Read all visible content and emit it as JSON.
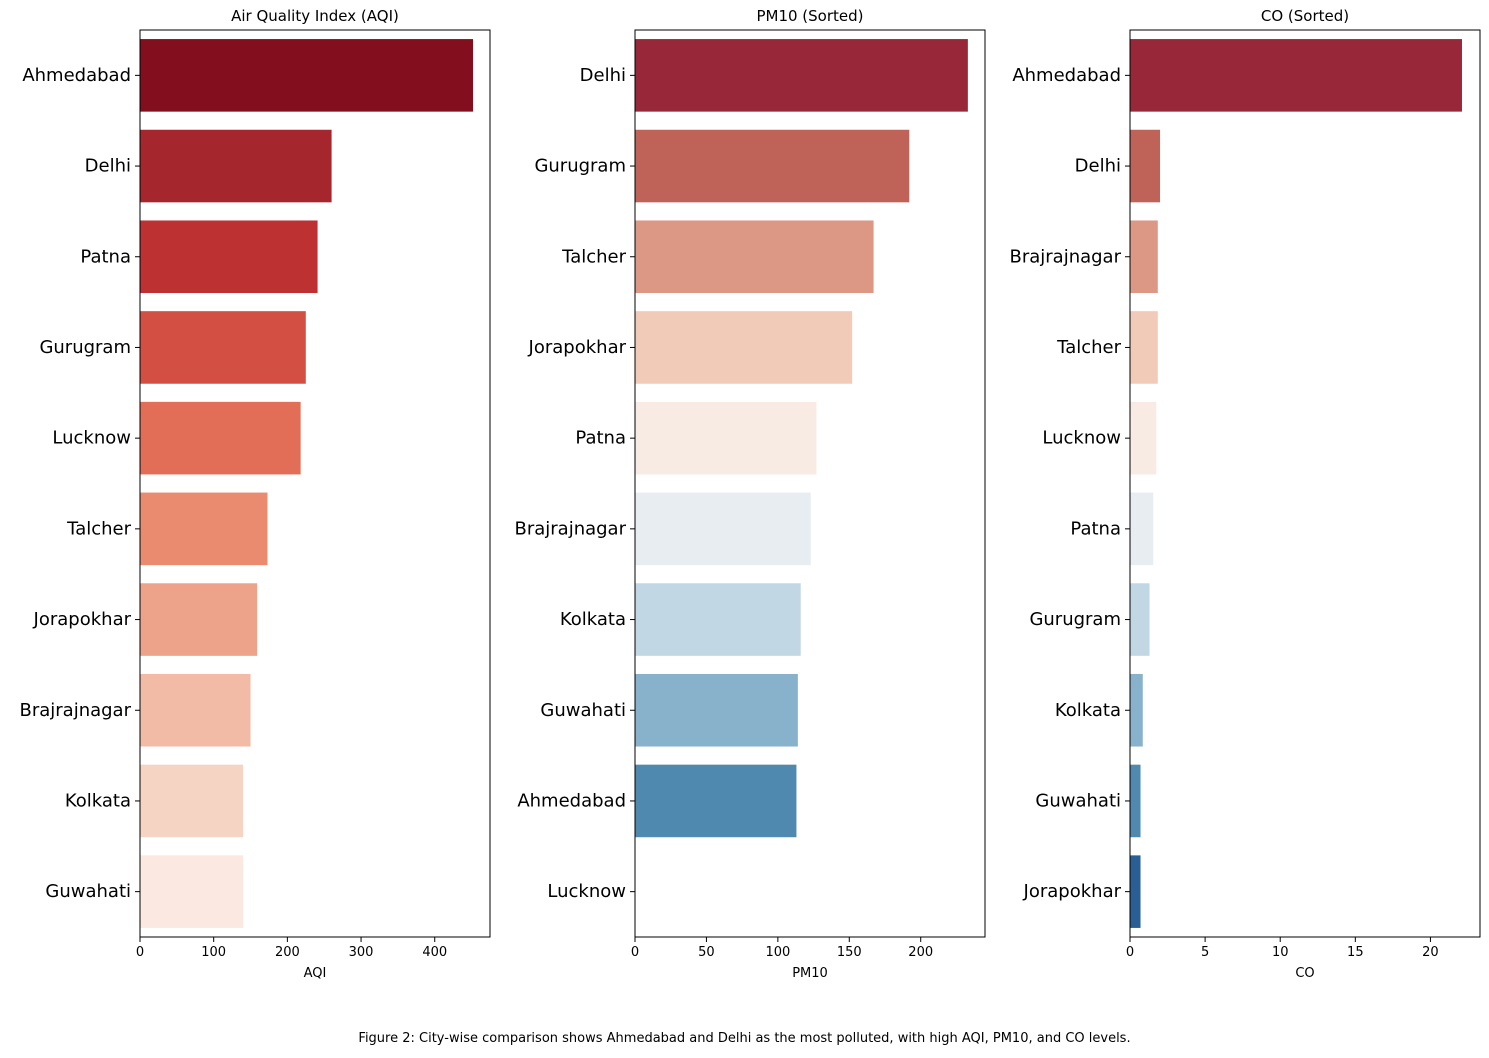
{
  "chart_data": [
    {
      "type": "bar",
      "orientation": "horizontal",
      "title": "Air Quality Index (AQI)",
      "xlabel": "AQI",
      "ylabel": "",
      "xlim": [
        0,
        475
      ],
      "xticks": [
        0,
        100,
        200,
        300,
        400
      ],
      "categories": [
        "Ahmedabad",
        "Delhi",
        "Patna",
        "Gurugram",
        "Lucknow",
        "Talcher",
        "Jorapokhar",
        "Brajrajnagar",
        "Kolkata",
        "Guwahati"
      ],
      "values": [
        452,
        260,
        241,
        225,
        218,
        173,
        159,
        150,
        140,
        140
      ],
      "colors": [
        "#830f1e",
        "#a5262c",
        "#bd3133",
        "#d34e43",
        "#e26e58",
        "#ea8a6f",
        "#eca38a",
        "#f1bba6",
        "#f6d4c4",
        "#fbe8e0"
      ],
      "grid": false
    },
    {
      "type": "bar",
      "orientation": "horizontal",
      "title": "PM10 (Sorted)",
      "xlabel": "PM10",
      "ylabel": "",
      "xlim": [
        0,
        245
      ],
      "xticks": [
        0,
        50,
        100,
        150,
        200
      ],
      "categories": [
        "Delhi",
        "Gurugram",
        "Talcher",
        "Jorapokhar",
        "Patna",
        "Brajrajnagar",
        "Kolkata",
        "Guwahati",
        "Ahmedabad",
        "Lucknow"
      ],
      "values": [
        233,
        192,
        167,
        152,
        127,
        123,
        116,
        114,
        113,
        0
      ],
      "colors": [
        "#98273a",
        "#bf6258",
        "#dc9884",
        "#f1cab8",
        "#f8ebe4",
        "#e8edf1",
        "#c1d7e4",
        "#88b2cb",
        "#4f89b0",
        "#2a5f95"
      ],
      "grid": false
    },
    {
      "type": "bar",
      "orientation": "horizontal",
      "title": "CO (Sorted)",
      "xlabel": "CO",
      "ylabel": "",
      "xlim": [
        0,
        23.3
      ],
      "xticks": [
        0,
        5,
        10,
        15,
        20
      ],
      "categories": [
        "Ahmedabad",
        "Delhi",
        "Brajrajnagar",
        "Talcher",
        "Lucknow",
        "Patna",
        "Gurugram",
        "Kolkata",
        "Guwahati",
        "Jorapokhar"
      ],
      "values": [
        22.1,
        2.0,
        1.85,
        1.85,
        1.75,
        1.55,
        1.3,
        0.85,
        0.7,
        0.7
      ],
      "colors": [
        "#98273a",
        "#bf6258",
        "#dc9884",
        "#f1cab8",
        "#f8ebe4",
        "#e8edf1",
        "#c1d7e4",
        "#88b2cb",
        "#4f89b0",
        "#2a5f95"
      ],
      "grid": false
    }
  ],
  "caption": "Figure 2: City-wise comparison shows Ahmedabad and Delhi as the most polluted, with high AQI, PM10, and CO levels."
}
